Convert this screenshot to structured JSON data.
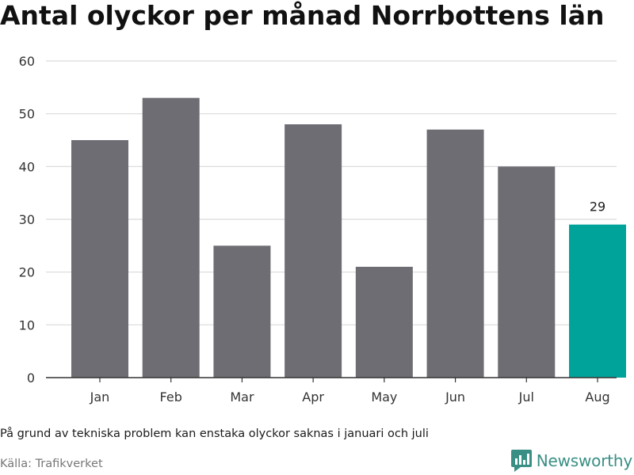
{
  "title": "Antal olyckor per månad Norrbottens län",
  "note": "På grund av tekniska problem kan enstaka olyckor saknas i januari och juli",
  "source": "Källa: Trafikverket",
  "brand": {
    "name": "Newsworthy",
    "icon": "newsworthy-bar-chart-icon"
  },
  "colors": {
    "bar": "#6e6d73",
    "highlight": "#00a39a",
    "grid": "#d9d9d9",
    "axis": "#333333"
  },
  "chart_data": {
    "type": "bar",
    "title": "Antal olyckor per månad Norrbottens län",
    "categories": [
      "Jan",
      "Feb",
      "Mar",
      "Apr",
      "May",
      "Jun",
      "Jul",
      "Aug"
    ],
    "values": [
      45,
      53,
      25,
      48,
      21,
      47,
      40,
      29
    ],
    "highlight_index": 7,
    "data_labels": [
      null,
      null,
      null,
      null,
      null,
      null,
      null,
      "29"
    ],
    "xlabel": "",
    "ylabel": "",
    "ylim": [
      0,
      60
    ],
    "yticks": [
      0,
      10,
      20,
      30,
      40,
      50,
      60
    ],
    "grid": true,
    "legend": "none"
  }
}
